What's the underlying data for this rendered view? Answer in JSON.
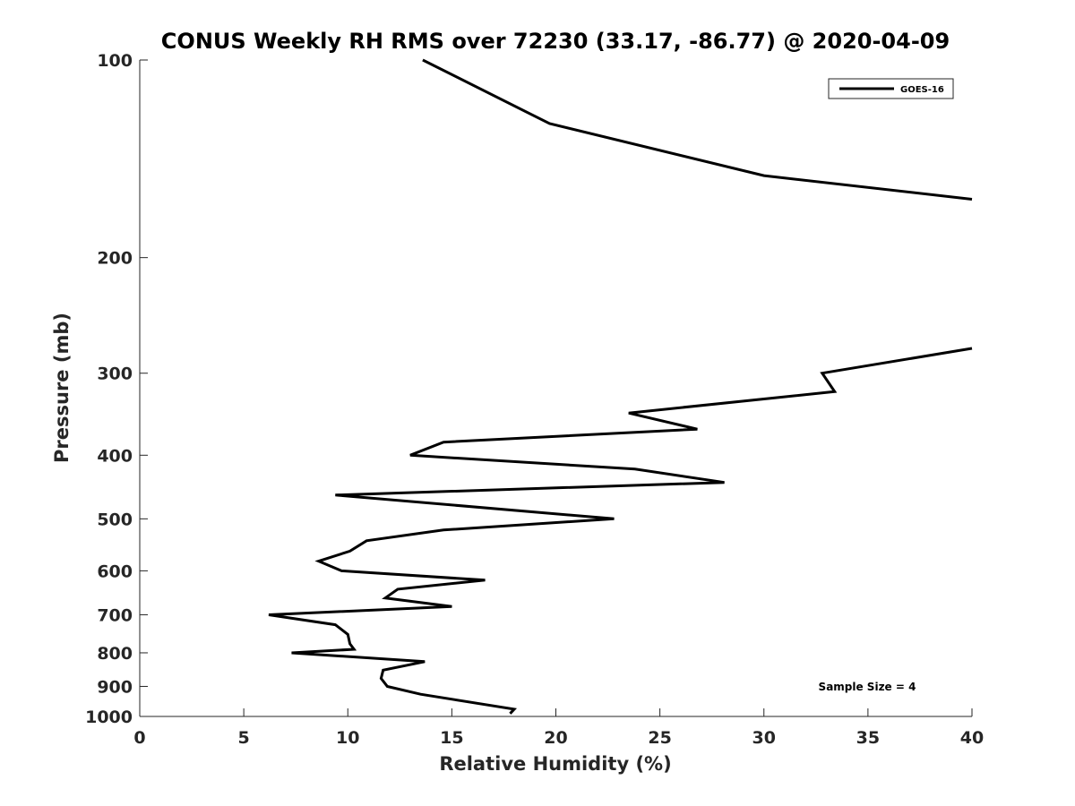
{
  "chart_data": {
    "type": "line",
    "title": "CONUS Weekly RH RMS over 72230 (33.17, -86.77) @ 2020-04-09",
    "xlabel": "Relative Humidity (%)",
    "ylabel": "Pressure (mb)",
    "xlim": [
      0,
      40
    ],
    "ylim": [
      100,
      1000
    ],
    "y_scale": "log",
    "y_reversed": true,
    "x_ticks": [
      0,
      5,
      10,
      15,
      20,
      25,
      30,
      35,
      40
    ],
    "x_tick_labels": [
      "0",
      "5",
      "10",
      "15",
      "20",
      "25",
      "30",
      "35",
      "40"
    ],
    "y_ticks": [
      100,
      200,
      300,
      400,
      500,
      600,
      700,
      800,
      900,
      1000
    ],
    "y_tick_labels": [
      "100",
      "200",
      "300",
      "400",
      "500",
      "600",
      "700",
      "800",
      "900",
      "1000"
    ],
    "legend_position": "top-right",
    "annotation": "Sample Size = 4",
    "color": "#000000",
    "series": [
      {
        "name": "GOES-16",
        "segments": [
          [
            {
              "x": 13.6,
              "y": 100
            },
            {
              "x": 19.7,
              "y": 125
            },
            {
              "x": 30.0,
              "y": 150
            },
            {
              "x": 40.0,
              "y": 163
            }
          ],
          [
            {
              "x": 40.0,
              "y": 275
            },
            {
              "x": 32.8,
              "y": 300
            },
            {
              "x": 33.4,
              "y": 320
            },
            {
              "x": 23.5,
              "y": 345
            },
            {
              "x": 26.8,
              "y": 365
            },
            {
              "x": 14.6,
              "y": 382
            },
            {
              "x": 13.0,
              "y": 400
            },
            {
              "x": 23.8,
              "y": 420
            },
            {
              "x": 28.1,
              "y": 440
            },
            {
              "x": 9.4,
              "y": 460
            },
            {
              "x": 22.8,
              "y": 500
            },
            {
              "x": 14.6,
              "y": 520
            },
            {
              "x": 10.9,
              "y": 540
            },
            {
              "x": 10.1,
              "y": 560
            },
            {
              "x": 8.6,
              "y": 580
            },
            {
              "x": 9.7,
              "y": 600
            },
            {
              "x": 16.6,
              "y": 620
            },
            {
              "x": 12.4,
              "y": 640
            },
            {
              "x": 11.8,
              "y": 660
            },
            {
              "x": 15.0,
              "y": 680
            },
            {
              "x": 6.2,
              "y": 700
            },
            {
              "x": 9.4,
              "y": 725
            },
            {
              "x": 10.0,
              "y": 750
            },
            {
              "x": 10.1,
              "y": 775
            },
            {
              "x": 10.3,
              "y": 790
            },
            {
              "x": 7.3,
              "y": 800
            },
            {
              "x": 13.7,
              "y": 825
            },
            {
              "x": 11.7,
              "y": 850
            },
            {
              "x": 11.6,
              "y": 875
            },
            {
              "x": 11.9,
              "y": 900
            },
            {
              "x": 13.5,
              "y": 925
            },
            {
              "x": 18.0,
              "y": 975
            },
            {
              "x": 17.8,
              "y": 990
            }
          ]
        ]
      }
    ]
  }
}
